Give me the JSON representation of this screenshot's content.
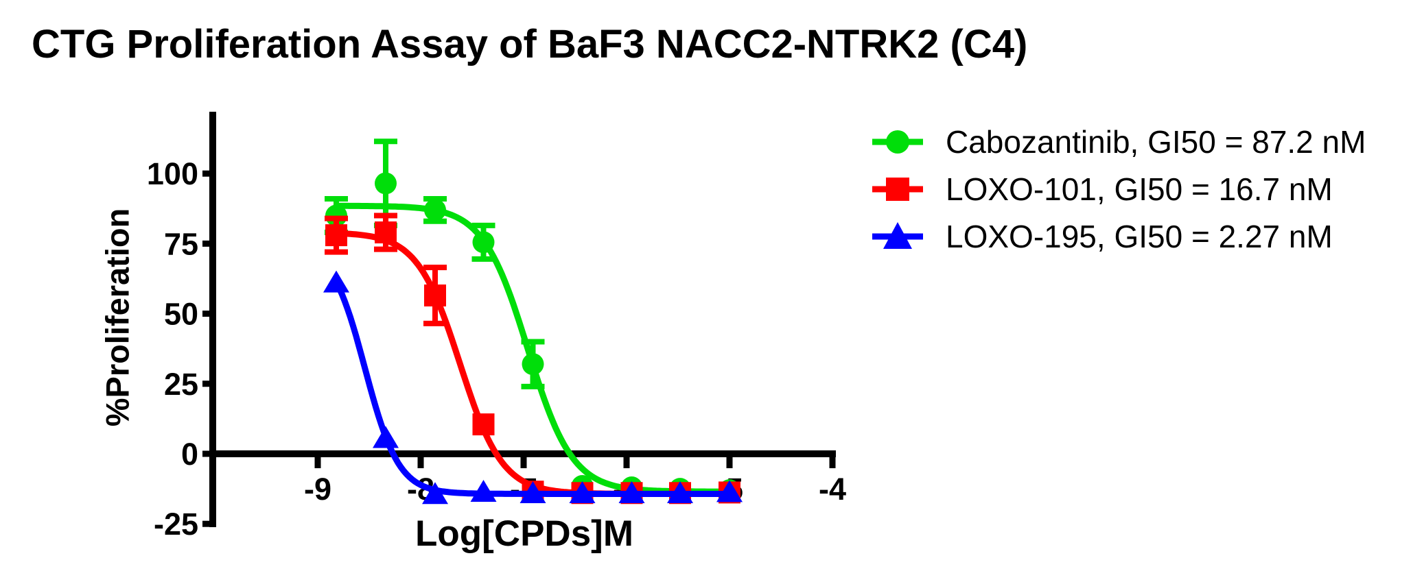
{
  "title": "CTG Proliferation Assay of BaF3 NACC2-NTRK2 (C4)",
  "chart_data": {
    "type": "line",
    "title": "CTG Proliferation Assay of BaF3 NACC2-NTRK2 (C4)",
    "xlabel": "Log[CPDs]M",
    "ylabel": "%Proliferation",
    "x_ticks": [
      -9,
      -8,
      -7,
      -6,
      -5,
      -4
    ],
    "y_ticks": [
      -25,
      0,
      25,
      50,
      75,
      100
    ],
    "xlim": [
      -10,
      -4
    ],
    "ylim": [
      -25,
      122
    ],
    "grid": false,
    "legend_position": "right",
    "x": [
      -8.82,
      -8.34,
      -7.86,
      -7.39,
      -6.91,
      -6.43,
      -5.95,
      -5.48,
      -5.0
    ],
    "series": [
      {
        "name": "Cabozantinib",
        "label": "Cabozantinib, GI50 = 87.2 nM",
        "gi50": "87.2 nM",
        "color": "#00de0a",
        "marker": "circle",
        "values": [
          85,
          96.5,
          87,
          75.5,
          32,
          -11.5,
          -12,
          -12.5,
          -13
        ],
        "errors": [
          6,
          15,
          4,
          6,
          8,
          0,
          0,
          0,
          0
        ],
        "curve_fit": {
          "top": 88.5,
          "bottom": -13.5,
          "log_ic50": -6.96,
          "hill": 2.0
        }
      },
      {
        "name": "LOXO-101",
        "label": "LOXO-101, GI50 = 16.7 nM",
        "gi50": "16.7 nM",
        "color": "#ff0000",
        "marker": "square",
        "values": [
          78,
          79,
          56.5,
          10.5,
          -13.5,
          -14,
          -14,
          -14,
          -13.8
        ],
        "errors": [
          6,
          6,
          10,
          0,
          0,
          0,
          0,
          0,
          0
        ],
        "curve_fit": {
          "top": 79,
          "bottom": -14.3,
          "log_ic50": -7.62,
          "hill": 2.1
        }
      },
      {
        "name": "LOXO-195",
        "label": "LOXO-195, GI50 = 2.27 nM",
        "gi50": "2.27 nM",
        "color": "#0000ff",
        "marker": "triangle",
        "values": [
          61,
          5.5,
          -14.5,
          -13.7,
          -14.2,
          -14.2,
          -14.2,
          -14.2,
          -13.8
        ],
        "errors": [
          0,
          0,
          0,
          0,
          0,
          0,
          0,
          0,
          0
        ],
        "curve_fit": {
          "top": 75,
          "bottom": -14.3,
          "log_ic50": -8.54,
          "hill": 2.65
        }
      }
    ]
  }
}
